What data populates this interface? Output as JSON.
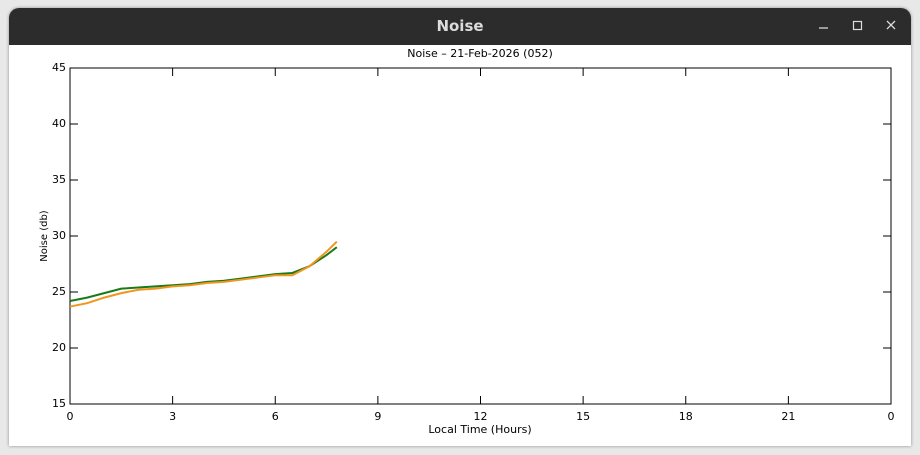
{
  "window": {
    "title": "Noise"
  },
  "chart_data": {
    "type": "line",
    "title": "Noise – 21-Feb-2026 (052)",
    "x_label": "Local Time (Hours)",
    "y_label": "Noise (db)",
    "x": [
      0,
      0.5,
      1,
      1.5,
      2,
      2.5,
      3,
      3.5,
      4,
      4.5,
      5,
      5.5,
      6,
      6.5,
      7,
      7.5,
      7.8
    ],
    "series": [
      {
        "color": "#1a7a1a",
        "values": [
          24.2,
          24.5,
          24.9,
          25.3,
          25.4,
          25.5,
          25.6,
          25.7,
          25.9,
          26.0,
          26.2,
          26.4,
          26.6,
          26.7,
          27.3,
          28.3,
          29.0
        ]
      },
      {
        "color": "#f0951e",
        "values": [
          23.7,
          24.0,
          24.5,
          24.9,
          25.2,
          25.3,
          25.5,
          25.6,
          25.8,
          25.9,
          26.1,
          26.3,
          26.5,
          26.5,
          27.3,
          28.6,
          29.5
        ]
      }
    ],
    "xlim": [
      0,
      24
    ],
    "xticks": [
      0,
      3,
      6,
      9,
      12,
      15,
      18,
      21,
      {
        "value": 24,
        "label": "0"
      }
    ],
    "ylim": [
      15,
      45
    ],
    "yticks": [
      15,
      20,
      25,
      30,
      35,
      40,
      45
    ]
  }
}
